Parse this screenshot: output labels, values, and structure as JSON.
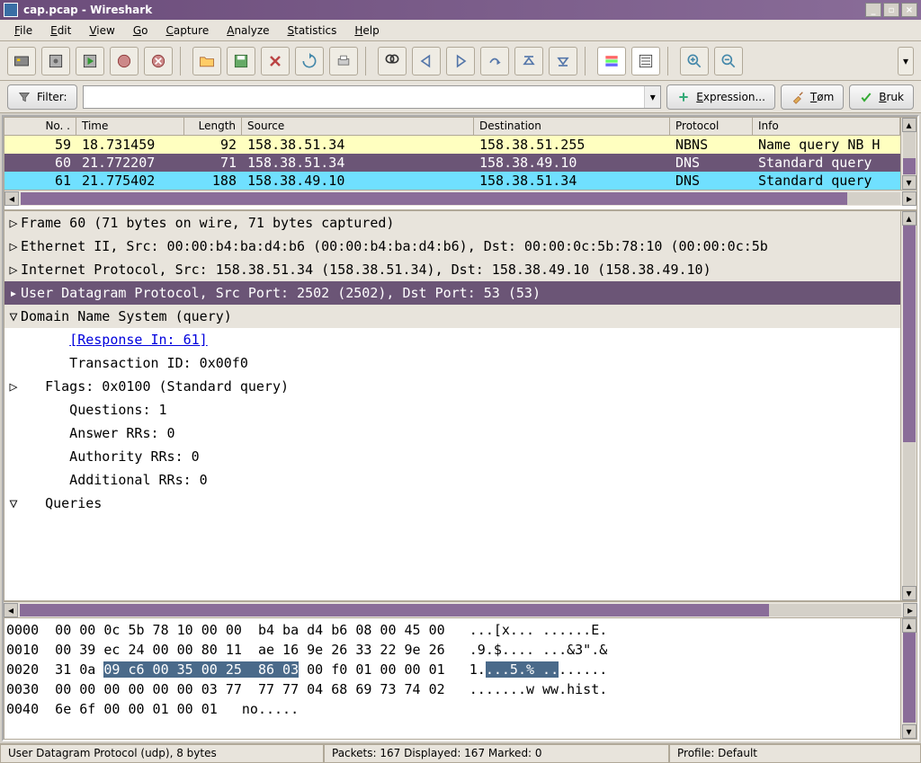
{
  "window": {
    "title": "cap.pcap - Wireshark"
  },
  "menu": {
    "items": [
      "File",
      "Edit",
      "View",
      "Go",
      "Capture",
      "Analyze",
      "Statistics",
      "Help"
    ]
  },
  "filterbar": {
    "filter_label": "Filter:",
    "filter_value": "",
    "expression_label": "Expression...",
    "clear_label": "Tøm",
    "apply_label": "Bruk"
  },
  "packet_list": {
    "headers": [
      "No. .",
      "Time",
      "Length",
      "Source",
      "Destination",
      "Protocol",
      "Info"
    ],
    "rows": [
      {
        "no": "59",
        "time": "18.731459",
        "length": "92",
        "source": "158.38.51.34",
        "destination": "158.38.51.255",
        "protocol": "NBNS",
        "info": "Name query NB H",
        "bg": "#FFFFC0",
        "fg": "#000000"
      },
      {
        "no": "60",
        "time": "21.772207",
        "length": "71",
        "source": "158.38.51.34",
        "destination": "158.38.49.10",
        "protocol": "DNS",
        "info": "Standard query",
        "bg": "#6b5576",
        "fg": "#ffffff"
      },
      {
        "no": "61",
        "time": "21.775402",
        "length": "188",
        "source": "158.38.49.10",
        "destination": "158.38.51.34",
        "protocol": "DNS",
        "info": "Standard query",
        "bg": "#70E0FF",
        "fg": "#000000"
      }
    ]
  },
  "details": {
    "rows": [
      {
        "tri": "▷",
        "text": "Frame 60 (71 bytes on wire, 71 bytes captured)",
        "bg": "gray",
        "indent": 0
      },
      {
        "tri": "▷",
        "text": "Ethernet II, Src: 00:00:b4:ba:d4:b6 (00:00:b4:ba:d4:b6), Dst: 00:00:0c:5b:78:10 (00:00:0c:5b",
        "bg": "gray",
        "indent": 0
      },
      {
        "tri": "▷",
        "text": "Internet Protocol, Src: 158.38.51.34 (158.38.51.34), Dst: 158.38.49.10 (158.38.49.10)",
        "bg": "gray",
        "indent": 0
      },
      {
        "tri": "▸",
        "text": "User Datagram Protocol, Src Port: 2502 (2502), Dst Port: 53 (53)",
        "bg": "sel",
        "indent": 0
      },
      {
        "tri": "▽",
        "text": "Domain Name System (query)",
        "bg": "gray",
        "indent": 0
      },
      {
        "tri": "",
        "text": "[Response In: 61]",
        "bg": "white",
        "indent": 2,
        "link": true
      },
      {
        "tri": "",
        "text": "Transaction ID: 0x00f0",
        "bg": "white",
        "indent": 2
      },
      {
        "tri": "▷",
        "text": "Flags: 0x0100 (Standard query)",
        "bg": "white",
        "indent": 1
      },
      {
        "tri": "",
        "text": "Questions: 1",
        "bg": "white",
        "indent": 2
      },
      {
        "tri": "",
        "text": "Answer RRs: 0",
        "bg": "white",
        "indent": 2
      },
      {
        "tri": "",
        "text": "Authority RRs: 0",
        "bg": "white",
        "indent": 2
      },
      {
        "tri": "",
        "text": "Additional RRs: 0",
        "bg": "white",
        "indent": 2
      },
      {
        "tri": "▽",
        "text": "Queries",
        "bg": "white",
        "indent": 1
      }
    ]
  },
  "hex": {
    "lines": [
      {
        "offset": "0000",
        "hex1": "00 00 0c 5b 78 10 00 00",
        "hex2": "b4 ba d4 b6 08 00 45 00",
        "ascii": "...[x... ......E."
      },
      {
        "offset": "0010",
        "hex1": "00 39 ec 24 00 00 80 11",
        "hex2": "ae 16 9e 26 33 22 9e 26",
        "ascii": ".9.$.... ...&3\".&"
      },
      {
        "offset": "0020",
        "hex1": "31 0a ",
        "hl": "09 c6 00 35 00 25  86 03",
        "hex2tail": " 00 f0 01 00 00 01",
        "ascii_pre": "1.",
        "ascii_hl": "...5.% ..",
        "ascii_post": "......"
      },
      {
        "offset": "0030",
        "hex1": "00 00 00 00 00 00 03 77",
        "hex2": "77 77 04 68 69 73 74 02",
        "ascii": ".......w ww.hist."
      },
      {
        "offset": "0040",
        "hex1": "6e 6f 00 00 01 00 01",
        "hex2": "",
        "ascii": "no....."
      }
    ]
  },
  "status": {
    "left": "User Datagram Protocol (udp), 8 bytes",
    "middle": "Packets: 167 Displayed: 167 Marked: 0",
    "right": "Profile: Default"
  },
  "colors": {
    "titlebar_start": "#6b4c7a",
    "titlebar_end": "#8a6d99",
    "scrollbar_thumb": "#8a6d99",
    "selected_row": "#6b5576",
    "hex_highlight": "#4a6a8a"
  }
}
